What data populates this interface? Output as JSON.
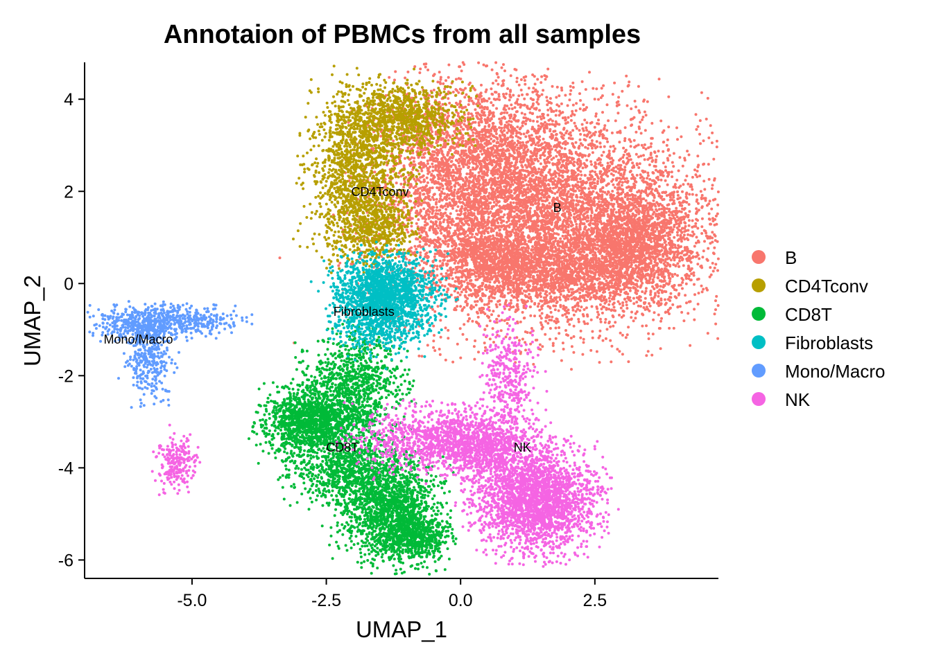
{
  "chart_data": {
    "type": "scatter",
    "title": "Annotaion of PBMCs from all samples",
    "xlabel": "UMAP_1",
    "ylabel": "UMAP_2",
    "xlim": [
      -7.0,
      4.8
    ],
    "ylim": [
      -6.4,
      4.8
    ],
    "xticks": [
      -5.0,
      -2.5,
      0.0,
      2.5
    ],
    "xtick_labels": [
      "-5.0",
      "-2.5",
      "0.0",
      "2.5"
    ],
    "yticks": [
      -6,
      -4,
      -2,
      0,
      2,
      4
    ],
    "ytick_labels": [
      "-6",
      "-4",
      "-2",
      "0",
      "2",
      "4"
    ],
    "grid": false,
    "legend_position": "right",
    "series": [
      {
        "name": "B",
        "color": "#F8766D",
        "label_at": [
          1.8,
          1.55
        ],
        "regions": [
          {
            "cx": 1.6,
            "cy": 1.4,
            "sx": 1.5,
            "sy": 1.2,
            "n": 5500
          },
          {
            "cx": 0.2,
            "cy": 2.6,
            "sx": 0.9,
            "sy": 0.9,
            "n": 2200
          },
          {
            "cx": 3.2,
            "cy": 0.9,
            "sx": 0.6,
            "sy": 0.6,
            "n": 1500
          },
          {
            "cx": 1.6,
            "cy": 0.2,
            "sx": 1.0,
            "sy": 0.35,
            "n": 1200
          },
          {
            "cx": 0.5,
            "cy": 0.6,
            "sx": 0.5,
            "sy": 0.3,
            "n": 500
          }
        ]
      },
      {
        "name": "CD4Tconv",
        "color": "#B79F00",
        "label_at": [
          -1.5,
          1.9
        ],
        "regions": [
          {
            "cx": -1.9,
            "cy": 2.4,
            "sx": 0.45,
            "sy": 0.85,
            "n": 1500
          },
          {
            "cx": -1.1,
            "cy": 3.6,
            "sx": 0.55,
            "sy": 0.35,
            "n": 900
          },
          {
            "cx": -1.6,
            "cy": 1.2,
            "sx": 0.35,
            "sy": 0.35,
            "n": 400
          }
        ]
      },
      {
        "name": "CD8T",
        "color": "#00BA38",
        "label_at": [
          -2.2,
          -3.65
        ],
        "regions": [
          {
            "cx": -2.8,
            "cy": -3.0,
            "sx": 0.45,
            "sy": 0.35,
            "n": 1300
          },
          {
            "cx": -2.0,
            "cy": -2.2,
            "sx": 0.45,
            "sy": 0.55,
            "n": 900
          },
          {
            "cx": -1.3,
            "cy": -4.9,
            "sx": 0.45,
            "sy": 0.55,
            "n": 1500
          },
          {
            "cx": -2.1,
            "cy": -4.0,
            "sx": 0.5,
            "sy": 0.4,
            "n": 800
          },
          {
            "cx": -0.8,
            "cy": -5.5,
            "sx": 0.3,
            "sy": 0.25,
            "n": 500
          }
        ]
      },
      {
        "name": "Fibroblasts",
        "color": "#00BFC4",
        "label_at": [
          -1.8,
          -0.7
        ],
        "regions": [
          {
            "cx": -1.4,
            "cy": -0.2,
            "sx": 0.45,
            "sy": 0.38,
            "n": 1600
          },
          {
            "cx": -1.5,
            "cy": -0.9,
            "sx": 0.4,
            "sy": 0.3,
            "n": 400
          }
        ]
      },
      {
        "name": "Mono/Macro",
        "color": "#619CFF",
        "label_at": [
          -6.0,
          -1.3
        ],
        "regions": [
          {
            "cx": -5.9,
            "cy": -0.85,
            "sx": 0.45,
            "sy": 0.18,
            "n": 450
          },
          {
            "cx": -5.8,
            "cy": -1.55,
            "sx": 0.22,
            "sy": 0.45,
            "n": 350
          },
          {
            "cx": -4.9,
            "cy": -0.8,
            "sx": 0.4,
            "sy": 0.15,
            "n": 200
          }
        ]
      },
      {
        "name": "NK",
        "color": "#F564E3",
        "label_at": [
          1.15,
          -3.65
        ],
        "regions": [
          {
            "cx": 1.4,
            "cy": -4.7,
            "sx": 0.55,
            "sy": 0.55,
            "n": 2400
          },
          {
            "cx": -0.3,
            "cy": -3.4,
            "sx": 0.8,
            "sy": 0.35,
            "n": 1200
          },
          {
            "cx": 0.9,
            "cy": -2.0,
            "sx": 0.25,
            "sy": 0.6,
            "n": 350
          },
          {
            "cx": -5.3,
            "cy": -3.9,
            "sx": 0.18,
            "sy": 0.28,
            "n": 220
          },
          {
            "cx": 0.5,
            "cy": -3.6,
            "sx": 0.4,
            "sy": 0.35,
            "n": 500
          }
        ]
      }
    ]
  }
}
